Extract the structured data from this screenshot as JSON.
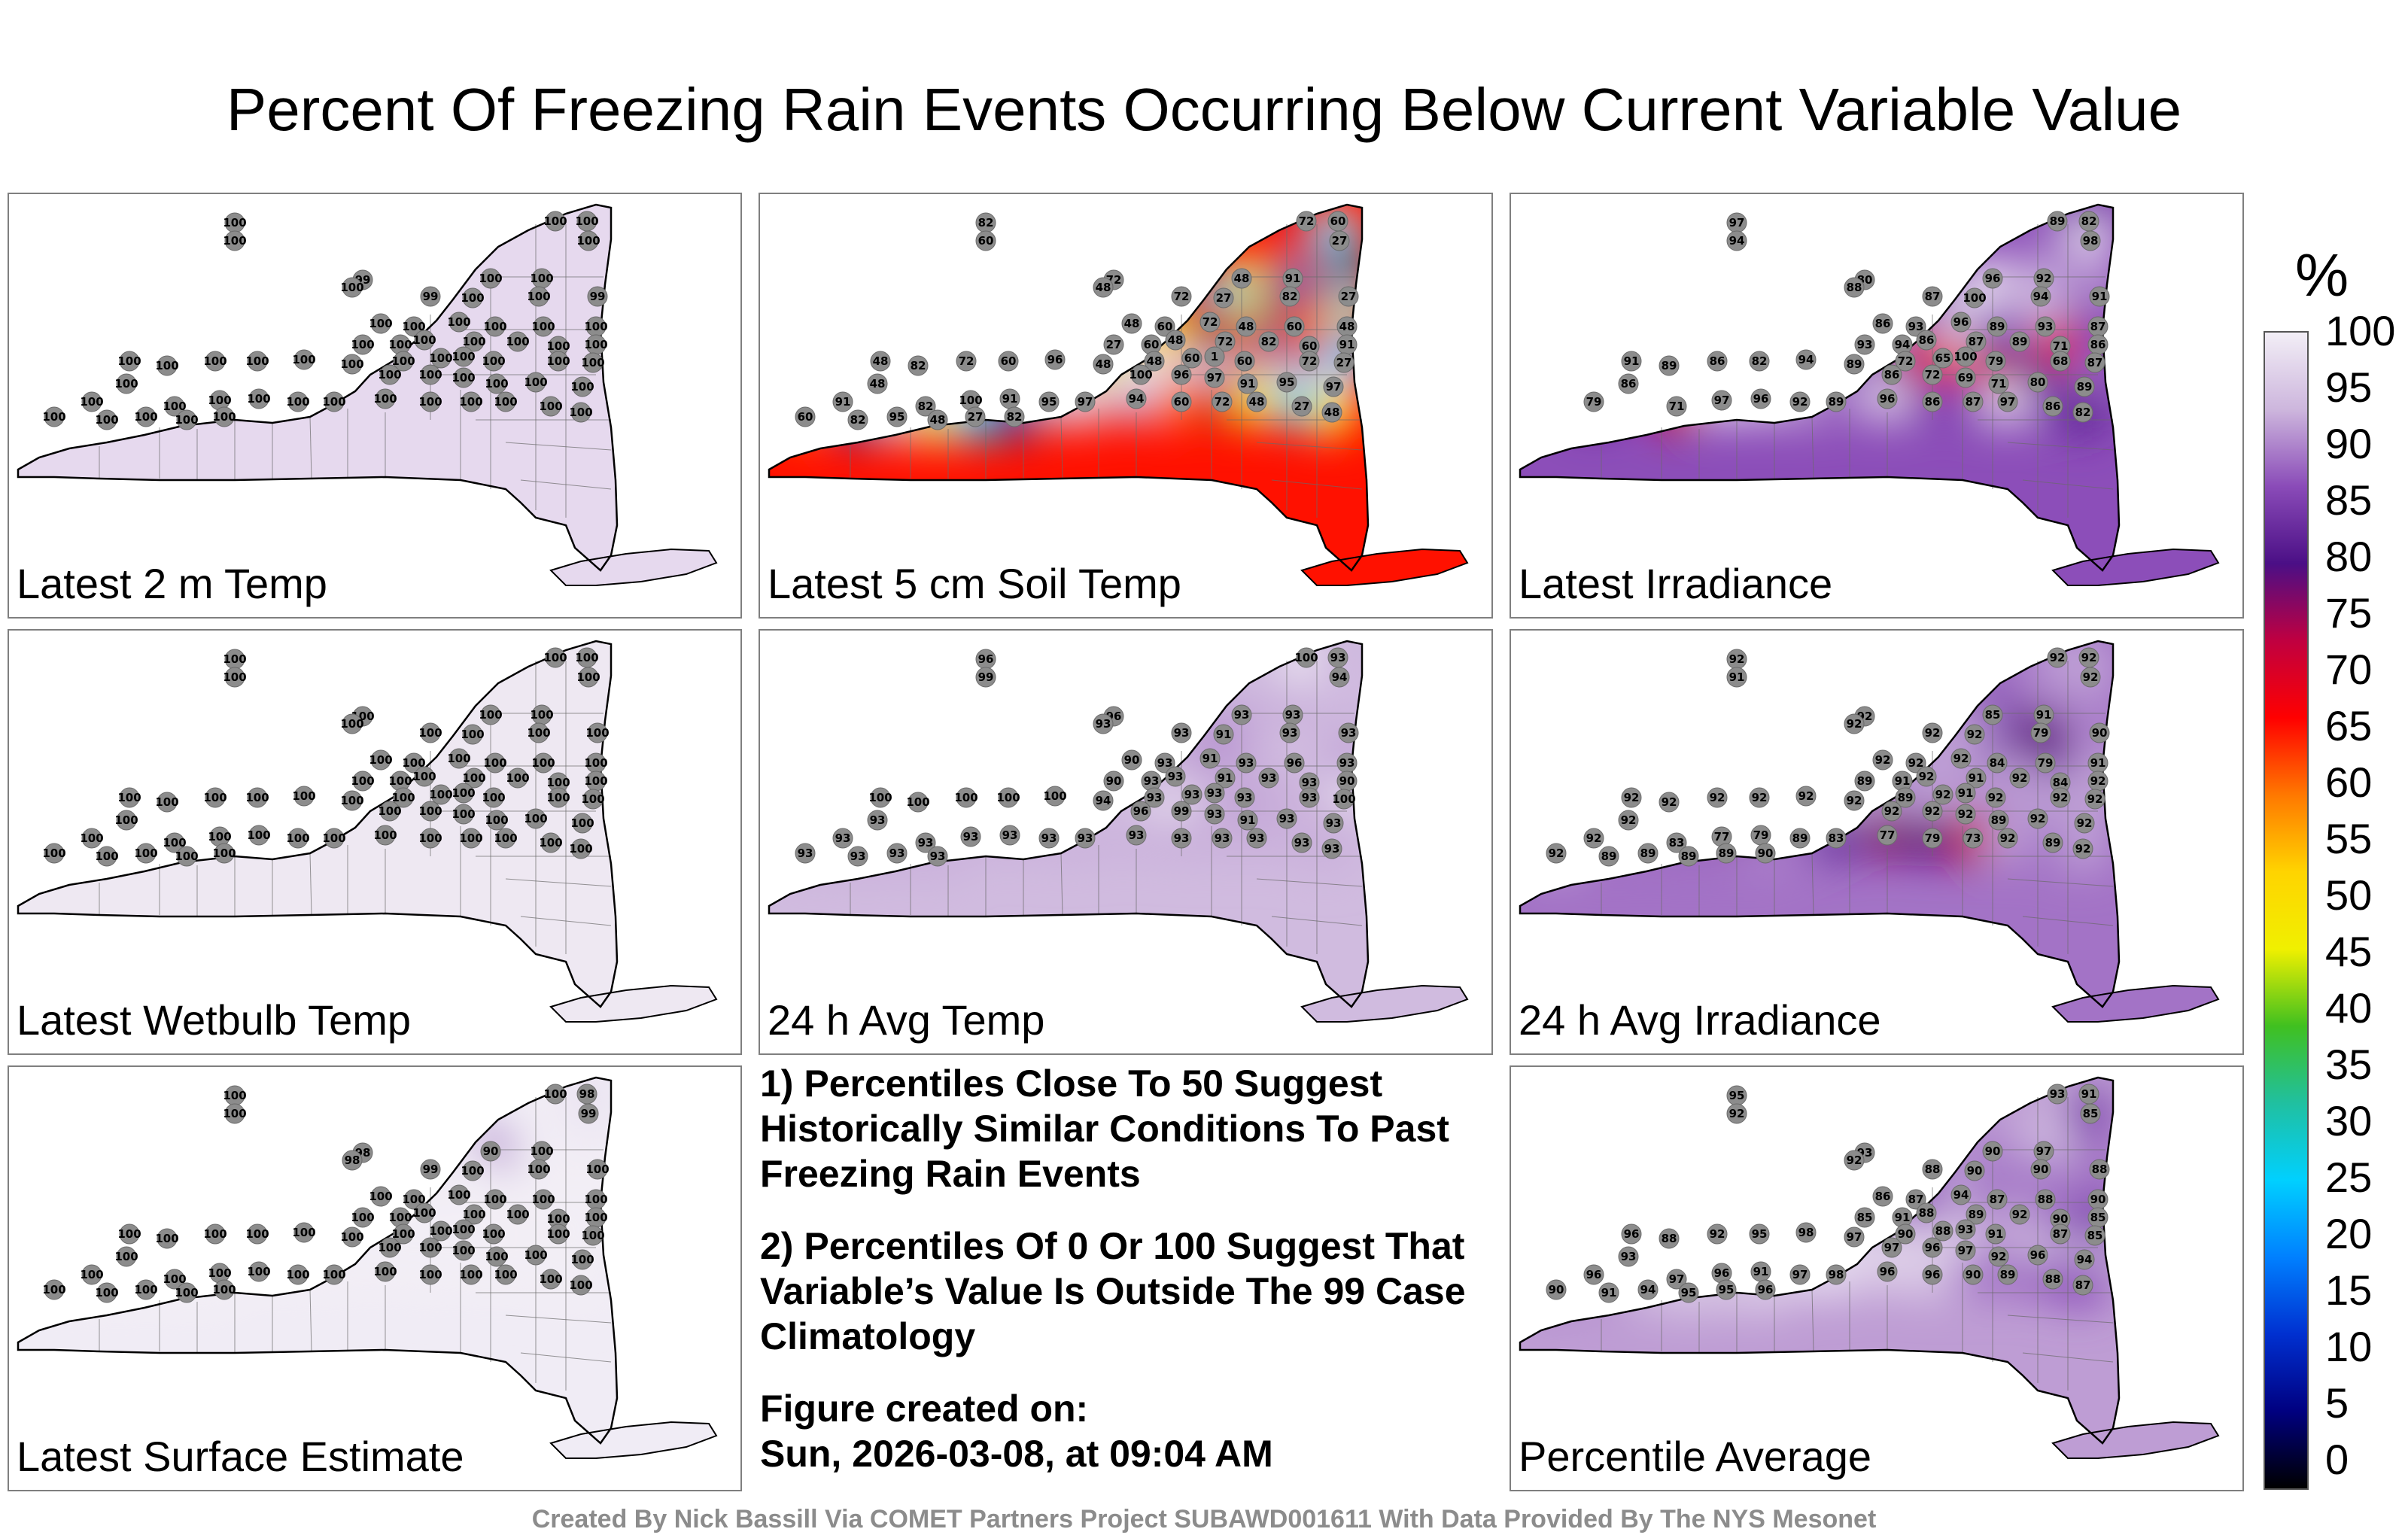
{
  "title": "Percent Of Freezing Rain Events Occurring Below Current Variable Value",
  "panels": [
    {
      "label": "Latest 2 m Temp",
      "mode": "flat",
      "base": "#e6d9ee",
      "values": [
        100,
        100,
        100,
        100,
        100,
        99,
        100,
        100,
        100,
        99,
        100,
        100,
        99,
        100,
        100,
        100,
        100,
        100,
        100,
        100,
        100,
        100,
        100,
        100,
        100,
        100,
        100,
        100,
        100,
        100,
        100,
        100,
        100,
        100,
        100,
        100,
        100,
        100,
        100,
        100,
        100,
        100,
        100,
        100,
        100,
        100,
        100,
        100,
        100,
        100,
        100,
        100,
        100,
        100,
        100,
        100,
        100,
        100,
        100,
        100,
        100,
        100
      ]
    },
    {
      "label": "Latest 5 cm Soil Temp",
      "mode": "soil",
      "values": [
        82,
        72,
        60,
        60,
        27,
        72,
        48,
        91,
        48,
        72,
        27,
        82,
        27,
        48,
        60,
        72,
        48,
        60,
        48,
        27,
        60,
        48,
        72,
        82,
        60,
        91,
        48,
        60,
        1,
        60,
        72,
        27,
        48,
        82,
        72,
        60,
        96,
        48,
        100,
        96,
        97,
        91,
        95,
        97,
        48,
        91,
        82,
        100,
        91,
        95,
        97,
        94,
        60,
        72,
        48,
        27,
        48,
        60,
        82,
        95,
        48,
        27,
        82
      ]
    },
    {
      "label": "Latest Irradiance",
      "mode": "irr",
      "values": [
        97,
        89,
        82,
        94,
        98,
        80,
        96,
        92,
        88,
        87,
        100,
        94,
        91,
        86,
        93,
        96,
        89,
        93,
        87,
        93,
        94,
        86,
        87,
        89,
        71,
        86,
        72,
        65,
        100,
        79,
        68,
        87,
        91,
        89,
        86,
        82,
        94,
        89,
        86,
        72,
        69,
        71,
        80,
        89,
        86,
        79,
        71,
        97,
        96,
        92,
        89,
        96,
        86,
        87,
        97,
        86,
        82
      ]
    },
    {
      "label": "Latest Wetbulb Temp",
      "mode": "flat",
      "base": "#eee8f2",
      "values": [
        100,
        100,
        100,
        100,
        100,
        100,
        100,
        100,
        100,
        100,
        100,
        100,
        100,
        100,
        100,
        100,
        100,
        100,
        100,
        100,
        100,
        100,
        100,
        100,
        100,
        100,
        100,
        100,
        100,
        100,
        100,
        100,
        100,
        100,
        100,
        100,
        100,
        100,
        100,
        100,
        100,
        100,
        100,
        100,
        100,
        100,
        100,
        100,
        100,
        100,
        100,
        100,
        100,
        100,
        100,
        100,
        100,
        100,
        100,
        100,
        100,
        100
      ]
    },
    {
      "label": "24 h Avg Temp",
      "mode": "avgT",
      "values": [
        96,
        100,
        93,
        99,
        94,
        96,
        93,
        93,
        93,
        93,
        91,
        93,
        93,
        90,
        93,
        91,
        93,
        96,
        93,
        90,
        93,
        93,
        91,
        93,
        93,
        90,
        93,
        93,
        93,
        93,
        93,
        100,
        100,
        100,
        100,
        100,
        100,
        94,
        96,
        99,
        93,
        91,
        93,
        93,
        93,
        93,
        93,
        93,
        93,
        93,
        93,
        93,
        93,
        93,
        93,
        93,
        93,
        93,
        93,
        93,
        93
      ]
    },
    {
      "label": "24 h Avg Irradiance",
      "mode": "avgI",
      "values": [
        92,
        92,
        92,
        91,
        92,
        92,
        85,
        91,
        92,
        92,
        92,
        79,
        90,
        92,
        92,
        92,
        84,
        79,
        91,
        89,
        91,
        92,
        91,
        92,
        84,
        92,
        89,
        92,
        91,
        92,
        92,
        92,
        92,
        92,
        92,
        92,
        92,
        92,
        92,
        92,
        92,
        89,
        92,
        92,
        92,
        92,
        83,
        77,
        79,
        89,
        83,
        77,
        79,
        73,
        92,
        89,
        92,
        92,
        89,
        89,
        89,
        89,
        90
      ]
    },
    {
      "label": "Latest Surface Estimate",
      "mode": "surf",
      "values": [
        100,
        100,
        98,
        100,
        99,
        98,
        90,
        100,
        98,
        99,
        100,
        100,
        100,
        100,
        100,
        100,
        100,
        100,
        100,
        100,
        100,
        100,
        100,
        100,
        100,
        100,
        100,
        100,
        100,
        100,
        100,
        100,
        100,
        100,
        100,
        100,
        100,
        100,
        100,
        100,
        100,
        100,
        100,
        100,
        100,
        100,
        100,
        100,
        100,
        100,
        100,
        100,
        100,
        100,
        100,
        100,
        100,
        100,
        100,
        100,
        100,
        100
      ]
    },
    {
      "label": "Percentile Average",
      "mode": "pavg",
      "values": [
        95,
        93,
        91,
        92,
        85,
        93,
        90,
        97,
        92,
        88,
        90,
        90,
        88,
        86,
        87,
        94,
        87,
        88,
        90,
        85,
        91,
        88,
        89,
        92,
        90,
        85,
        90,
        88,
        93,
        91,
        87,
        85,
        96,
        88,
        92,
        95,
        98,
        97,
        97,
        96,
        97,
        92,
        96,
        94,
        93,
        96,
        97,
        96,
        91,
        97,
        98,
        96,
        96,
        90,
        89,
        88,
        87,
        90,
        91,
        94,
        95,
        95,
        96
      ]
    }
  ],
  "notes": {
    "n1": "1) Percentiles Close To 50 Suggest Historically Similar Conditions To Past Freezing Rain Events",
    "n2": "2) Percentiles Of 0 Or 100 Suggest That Variable’s Value Is Outside The 99 Case Climatology",
    "n3a": "Figure created on:",
    "n3b": "Sun, 2026-03-08, at 09:04 AM"
  },
  "colorbar": {
    "unit": "%",
    "ticks": [
      "100",
      "95",
      "90",
      "85",
      "80",
      "75",
      "70",
      "65",
      "60",
      "55",
      "50",
      "45",
      "40",
      "35",
      "30",
      "25",
      "20",
      "15",
      "10",
      "5",
      "0"
    ],
    "stops": [
      "#f2eef6",
      "#cdb6dd",
      "#8a4bb8",
      "#4b0f86",
      "#c00040",
      "#ff0000",
      "#ff7800",
      "#ffd400",
      "#f0f000",
      "#40c020",
      "#20c0a0",
      "#00d0ff",
      "#0080ff",
      "#0030d0",
      "#000080",
      "#000000"
    ]
  },
  "credit": "Created By Nick Bassill Via COMET Partners Project SUBAWD001611 With Data Provided By The NYS Mesonet"
}
